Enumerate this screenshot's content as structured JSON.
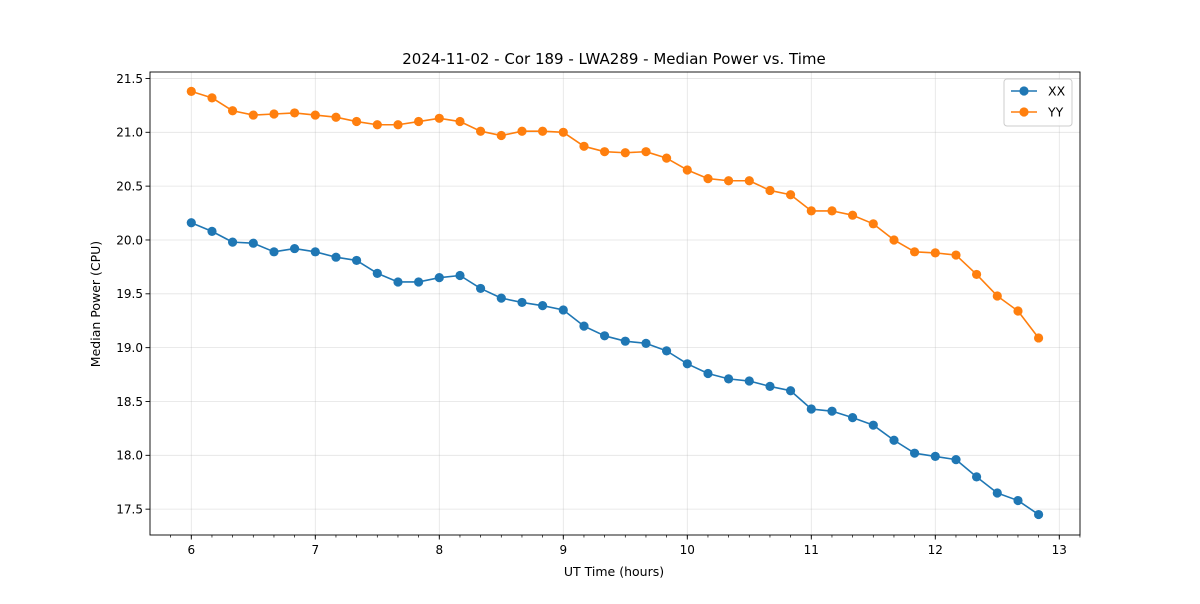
{
  "chart_data": {
    "type": "line",
    "title": "2024-11-02 - Cor 189 - LWA289 - Median Power vs. Time",
    "xlabel": "UT Time (hours)",
    "ylabel": "Median Power (CPU)",
    "xlim": [
      5.667,
      13.167
    ],
    "ylim": [
      17.26,
      21.56
    ],
    "grid": true,
    "legend_position": "top-right",
    "x_ticks": [
      6,
      7,
      8,
      9,
      10,
      11,
      12,
      13
    ],
    "x_tick_labels": [
      "6",
      "7",
      "8",
      "9",
      "10",
      "11",
      "12",
      "13"
    ],
    "y_ticks": [
      17.5,
      18.0,
      18.5,
      19.0,
      19.5,
      20.0,
      20.5,
      21.0,
      21.5
    ],
    "y_tick_labels": [
      "17.5",
      "18.0",
      "18.5",
      "19.0",
      "19.5",
      "20.0",
      "20.5",
      "21.0",
      "21.5"
    ],
    "x": [
      6.0,
      6.167,
      6.333,
      6.5,
      6.667,
      6.833,
      7.0,
      7.167,
      7.333,
      7.5,
      7.667,
      7.833,
      8.0,
      8.167,
      8.333,
      8.5,
      8.667,
      8.833,
      9.0,
      9.167,
      9.333,
      9.5,
      9.667,
      9.833,
      10.0,
      10.167,
      10.333,
      10.5,
      10.667,
      10.833,
      11.0,
      11.167,
      11.333,
      11.5,
      11.667,
      11.833,
      12.0,
      12.167,
      12.333,
      12.5,
      12.667,
      12.833
    ],
    "series": [
      {
        "name": "XX",
        "color": "#1f77b4",
        "values": [
          20.16,
          20.08,
          19.98,
          19.97,
          19.89,
          19.92,
          19.89,
          19.84,
          19.81,
          19.69,
          19.61,
          19.61,
          19.65,
          19.67,
          19.55,
          19.46,
          19.42,
          19.39,
          19.35,
          19.2,
          19.11,
          19.06,
          19.04,
          18.97,
          18.85,
          18.76,
          18.71,
          18.69,
          18.64,
          18.6,
          18.43,
          18.41,
          18.35,
          18.28,
          18.14,
          18.02,
          17.99,
          17.96,
          17.8,
          17.65,
          17.58,
          17.45
        ]
      },
      {
        "name": "YY",
        "color": "#ff7f0e",
        "values": [
          21.38,
          21.32,
          21.2,
          21.16,
          21.17,
          21.18,
          21.16,
          21.14,
          21.1,
          21.07,
          21.07,
          21.1,
          21.13,
          21.1,
          21.01,
          20.97,
          21.01,
          21.01,
          21.0,
          20.87,
          20.82,
          20.81,
          20.82,
          20.76,
          20.65,
          20.57,
          20.55,
          20.55,
          20.46,
          20.42,
          20.27,
          20.27,
          20.23,
          20.15,
          20.0,
          19.89,
          19.88,
          19.86,
          19.68,
          19.48,
          19.34,
          19.09
        ]
      }
    ]
  }
}
